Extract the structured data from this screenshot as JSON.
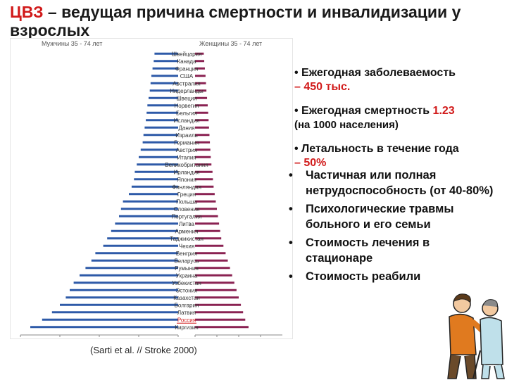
{
  "title": {
    "prefix": "ЦВЗ",
    "rest": " – ведущая причина смертности и инвалидизации у взрослых"
  },
  "chart_data": {
    "type": "bar",
    "left_label": "Мужчины 35 - 74 лет",
    "right_label": "Женщины 35 - 74 лет",
    "colors": {
      "men": "#2e5aa8",
      "women": "#8a2252",
      "highlight": "#d11a1a"
    },
    "categories": [
      "Швейцария",
      "Канада",
      "Франция",
      "США",
      "Австралия",
      "Нидерланды",
      "Швеция",
      "Норвегия",
      "Бельгия",
      "Исландия",
      "Дания",
      "Израиль",
      "Германия",
      "Австрия",
      "Италия",
      "Великобритания",
      "Ирландия",
      "Япония",
      "Финляндия",
      "Греция",
      "Польша",
      "Словения",
      "Португалия",
      "Литва",
      "Армения",
      "Таджикистан",
      "Чехия",
      "Венгрия",
      "Беларусь",
      "Румыния",
      "Украина",
      "Узбекистан",
      "Эстония",
      "Казахстан",
      "Болгария",
      "Латвия",
      "Россия",
      "Киргизия"
    ],
    "men": [
      60,
      62,
      65,
      68,
      70,
      72,
      75,
      78,
      80,
      82,
      85,
      88,
      90,
      95,
      100,
      105,
      110,
      112,
      118,
      125,
      140,
      145,
      150,
      160,
      170,
      180,
      190,
      210,
      220,
      235,
      250,
      265,
      275,
      285,
      300,
      320,
      345,
      375
    ],
    "women": [
      40,
      42,
      45,
      48,
      50,
      52,
      55,
      58,
      60,
      62,
      64,
      66,
      68,
      70,
      72,
      75,
      80,
      82,
      85,
      90,
      95,
      100,
      105,
      110,
      115,
      120,
      130,
      140,
      150,
      160,
      170,
      180,
      190,
      200,
      210,
      220,
      230,
      245
    ],
    "highlight_category": "Россия",
    "x_ticks": [
      "400",
      "300",
      "200",
      "100",
      "0",
      "0",
      "100",
      "200",
      "300"
    ],
    "xlim": [
      0,
      400
    ]
  },
  "citation": "(Sarti et al. // Stroke 2000)",
  "stats": {
    "incidence": {
      "label": "Ежегодная заболеваемость",
      "value": "– 450 тыс."
    },
    "mortality": {
      "label": "Ежегодная смертность",
      "value": "1.23",
      "note": "(на 1000 населения)"
    },
    "lethality": {
      "label": "Летальность в течение года",
      "value": "– 50%"
    }
  },
  "bullets": [
    "Частичная или полная нетрудоспособность (от 40-80%)",
    "Психологические травмы больного и его семьи",
    "Стоимость лечения в стационаре",
    "Стоимость реабили"
  ]
}
